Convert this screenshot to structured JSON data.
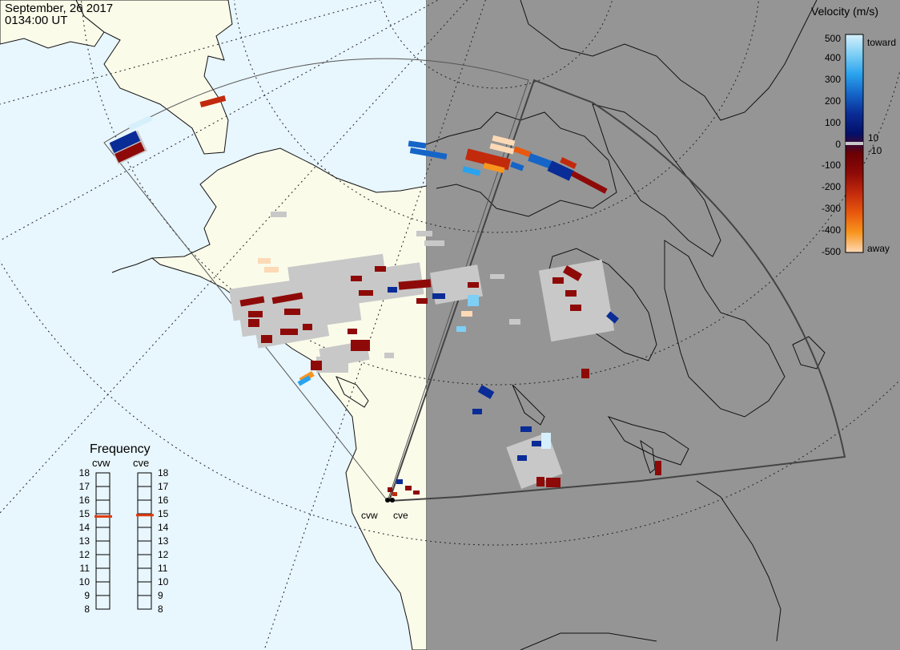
{
  "header": {
    "date": "September, 26 2017",
    "time": "0134:00 UT"
  },
  "colors": {
    "ocean": "#e8f6fd",
    "land": "#fbfbea",
    "night": "#959595",
    "ground_scatter": "#c8c8c8",
    "fov_outline": "#555555"
  },
  "velocity_scale": {
    "title": "Velocity (m/s)",
    "ticks": [
      "500",
      "400",
      "300",
      "200",
      "100",
      "10",
      "0",
      "-10",
      "-100",
      "-200",
      "-300",
      "-400",
      "-500"
    ],
    "toward_label": "toward",
    "away_label": "away",
    "stops": [
      {
        "value": 500,
        "color": "#d6f0fb"
      },
      {
        "value": 400,
        "color": "#7ecff5"
      },
      {
        "value": 300,
        "color": "#2aa3ee"
      },
      {
        "value": 200,
        "color": "#1565c8"
      },
      {
        "value": 100,
        "color": "#0a2c96"
      },
      {
        "value": 10,
        "color": "#03106a"
      },
      {
        "value": -10,
        "color": "#6a0004"
      },
      {
        "value": -100,
        "color": "#8e0a08"
      },
      {
        "value": -200,
        "color": "#c22a0c"
      },
      {
        "value": -300,
        "color": "#e8580e"
      },
      {
        "value": -400,
        "color": "#f8951e"
      },
      {
        "value": -500,
        "color": "#fdd9b6"
      }
    ]
  },
  "frequency_panel": {
    "title": "Frequency",
    "radars": [
      {
        "name": "cvw",
        "value_mhz": 14.8
      },
      {
        "name": "cve",
        "value_mhz": 14.9
      }
    ],
    "scale": [
      "18",
      "17",
      "16",
      "15",
      "14",
      "13",
      "12",
      "11",
      "10",
      "9",
      "8"
    ],
    "marker_color": "#e03a10"
  },
  "radars": [
    {
      "label": "cvw"
    },
    {
      "label": "cve"
    }
  ]
}
